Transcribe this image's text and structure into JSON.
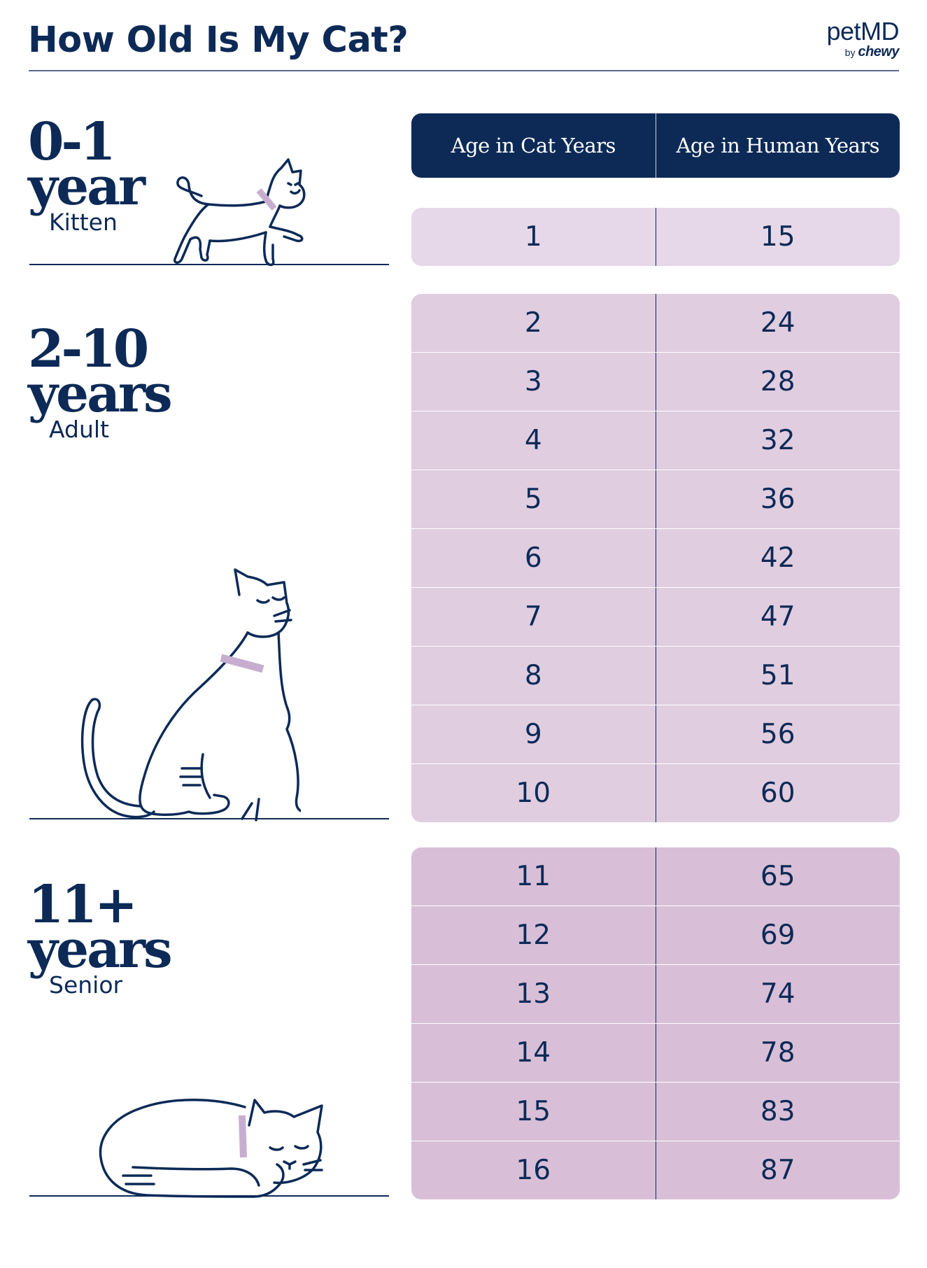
{
  "header": {
    "title": "How Old Is My Cat?",
    "brand_name": "petMD",
    "brand_by": "by",
    "brand_sub": "chewy"
  },
  "table": {
    "columns": [
      "Age in Cat Years",
      "Age in Human Years"
    ],
    "groups": [
      {
        "stage_range": "0-1",
        "stage_unit": "year",
        "stage_label": "Kitten",
        "bg": "#e6d8e8",
        "rows": [
          [
            "1",
            "15"
          ]
        ]
      },
      {
        "stage_range": "2-10",
        "stage_unit": "years",
        "stage_label": "Adult",
        "bg": "#e0cde0",
        "rows": [
          [
            "2",
            "24"
          ],
          [
            "3",
            "28"
          ],
          [
            "4",
            "32"
          ],
          [
            "5",
            "36"
          ],
          [
            "6",
            "42"
          ],
          [
            "7",
            "47"
          ],
          [
            "8",
            "51"
          ],
          [
            "9",
            "56"
          ],
          [
            "10",
            "60"
          ]
        ]
      },
      {
        "stage_range": "11+",
        "stage_unit": "years",
        "stage_label": "Senior",
        "bg": "#d8bfd7",
        "rows": [
          [
            "11",
            "65"
          ],
          [
            "12",
            "69"
          ],
          [
            "13",
            "74"
          ],
          [
            "14",
            "78"
          ],
          [
            "15",
            "83"
          ],
          [
            "16",
            "87"
          ]
        ]
      }
    ]
  },
  "colors": {
    "navy": "#0d2a57",
    "collar": "#c7aed0"
  },
  "icons": [
    "walking-cat-illustration",
    "sitting-cat-illustration",
    "sleeping-cat-illustration"
  ]
}
